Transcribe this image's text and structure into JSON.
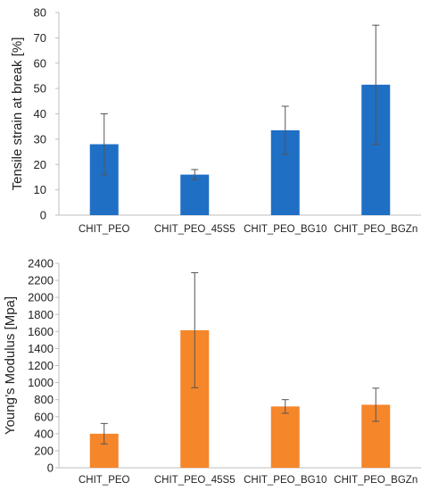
{
  "chart_data": [
    {
      "type": "bar",
      "title": "",
      "xlabel": "",
      "ylabel": "Tensile strain at break [%]",
      "ylim": [
        0,
        80
      ],
      "yticks": [
        0,
        10,
        20,
        30,
        40,
        50,
        60,
        70,
        80
      ],
      "categories": [
        "CHIT_PEO",
        "CHIT_PEO_45S5",
        "CHIT_PEO_BG10",
        "CHIT_PEO_BGZn"
      ],
      "series": [
        {
          "values": [
            28,
            16,
            33.5,
            51.5
          ],
          "errors": [
            12,
            2,
            9.5,
            23.5
          ],
          "color": "#1f6fc5"
        }
      ],
      "grid": false,
      "legend": "none"
    },
    {
      "type": "bar",
      "title": "",
      "xlabel": "",
      "ylabel": "Young’s Modulus [Mpa]",
      "ylim": [
        0,
        2400
      ],
      "yticks": [
        0,
        200,
        400,
        600,
        800,
        1000,
        1200,
        1400,
        1600,
        1800,
        2000,
        2200,
        2400
      ],
      "categories": [
        "CHIT_PEO",
        "CHIT_PEO_45S5",
        "CHIT_PEO_BG10",
        "CHIT_PEO_BGZn"
      ],
      "series": [
        {
          "values": [
            400,
            1615,
            720,
            740
          ],
          "errors": [
            120,
            675,
            80,
            195
          ],
          "color": "#f5862a"
        }
      ],
      "grid": false,
      "legend": "none"
    }
  ]
}
